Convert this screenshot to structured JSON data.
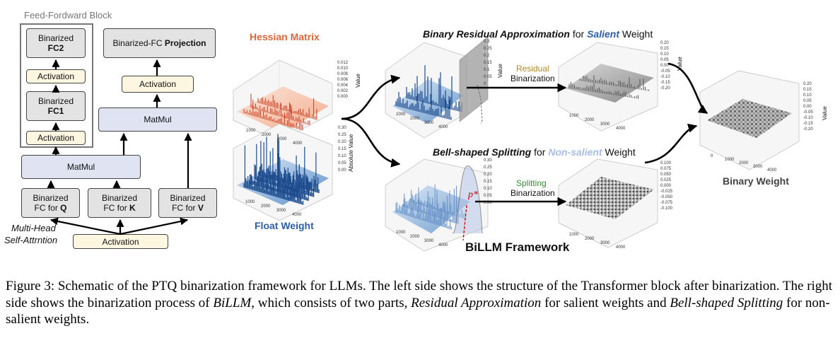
{
  "ffn": {
    "title": "Feed-Fordward Block",
    "fc2_a": "Binarized",
    "fc2_b": "FC2",
    "act_top": "Activation",
    "fc1_a": "Binarized",
    "fc1_b": "FC1",
    "act_bottom": "Activation"
  },
  "attention": {
    "proj_a": "Binarized-FC ",
    "proj_b": "Projection",
    "act_mid": "Activation",
    "matmul_right": "MatMul",
    "matmul_left": "MatMul",
    "fcq_a": "Binarized",
    "fcq_b": "FC for ",
    "fcq_c": "Q",
    "fck_a": "Binarized",
    "fck_b": "FC for ",
    "fck_c": "K",
    "fcv_a": "Binarized",
    "fcv_b": "FC for ",
    "fcv_c": "V",
    "mha_1": "Multi-Head",
    "mha_2": "Self-Attrntion",
    "act_input": "Activation"
  },
  "billm": {
    "hessian": "Hessian Matrix",
    "float_weight": "Float Weight",
    "residual_title_1": "Binary Residual Approximation",
    "residual_title_2": " for ",
    "residual_title_3": "Salient",
    "residual_title_4": " Weight",
    "residual_step_1": "Residual",
    "residual_step_2": "Binarization",
    "bell_title_1": "Bell-shaped Splitting",
    "bell_title_2": " for ",
    "bell_title_3": "Non-salient",
    "bell_title_4": " Weight",
    "split_step_1": "Splitting",
    "split_step_2": "Binarization",
    "p_star": "p*",
    "binary_weight": "Binary  Weight",
    "framework": "BiLLM Framework",
    "value_axis": "Value",
    "abs_value_axis": "Absolute Value"
  },
  "caption": {
    "part1": "Figure 3: Schematic of the PTQ binarization framework for LLMs. The left side shows the structure of the Transformer block after binarization. The right side shows the binarization process of ",
    "part2": "BiLLM",
    "part3": ", which consists of two parts, ",
    "part4": "Residual Approximation",
    "part5": " for salient weights and ",
    "part6": "Bell-shaped Splitting",
    "part7": " for non-salient weights."
  },
  "colors": {
    "hessian": "#d9683a",
    "float_weight": "#2e5fa3",
    "salient": "#2e5fa3",
    "non_salient": "#a9bde0",
    "residual_label": "#b08a2a",
    "split_label": "#3a8a3a",
    "gray_box": "#e3e3e3",
    "cream_box": "#fdf6e1",
    "lavender_box": "#dfe3f2"
  },
  "ticks": {
    "hessian_z": [
      "0.012",
      "0.010",
      "0.008",
      "0.006",
      "0.004",
      "0.002",
      "0.000"
    ],
    "float_z": [
      "0.30",
      "0.25",
      "0.20",
      "0.15",
      "0.10",
      "0.05",
      "0.00"
    ],
    "res_z": [
      "0.20",
      "0.15",
      "0.10",
      "0.05",
      "0.00",
      "-0.05",
      "-0.10",
      "-0.15",
      "-0.20"
    ],
    "bin_z": [
      "0.20",
      "0.15",
      "0.10",
      "0.05",
      "0.00",
      "-0.05",
      "-0.10",
      "-0.15",
      "-0.20"
    ],
    "split_z": [
      "0.100",
      "0.075",
      "0.050",
      "0.025",
      "0.000",
      "-0.025",
      "-0.050",
      "-0.075",
      "-0.100"
    ],
    "sal_z": [
      "0.3",
      "0.25",
      "0.2",
      "0.15",
      "0.1",
      "0.05",
      "0"
    ],
    "bell_z": [
      "0.30",
      "0.25",
      "0.20",
      "0.15",
      "0.10",
      "0.05",
      "0.00"
    ],
    "xy_a": [
      "1000",
      "2000",
      "3000",
      "4000"
    ],
    "xy_b": [
      "0",
      "1000",
      "2000",
      "3000",
      "4000"
    ]
  }
}
